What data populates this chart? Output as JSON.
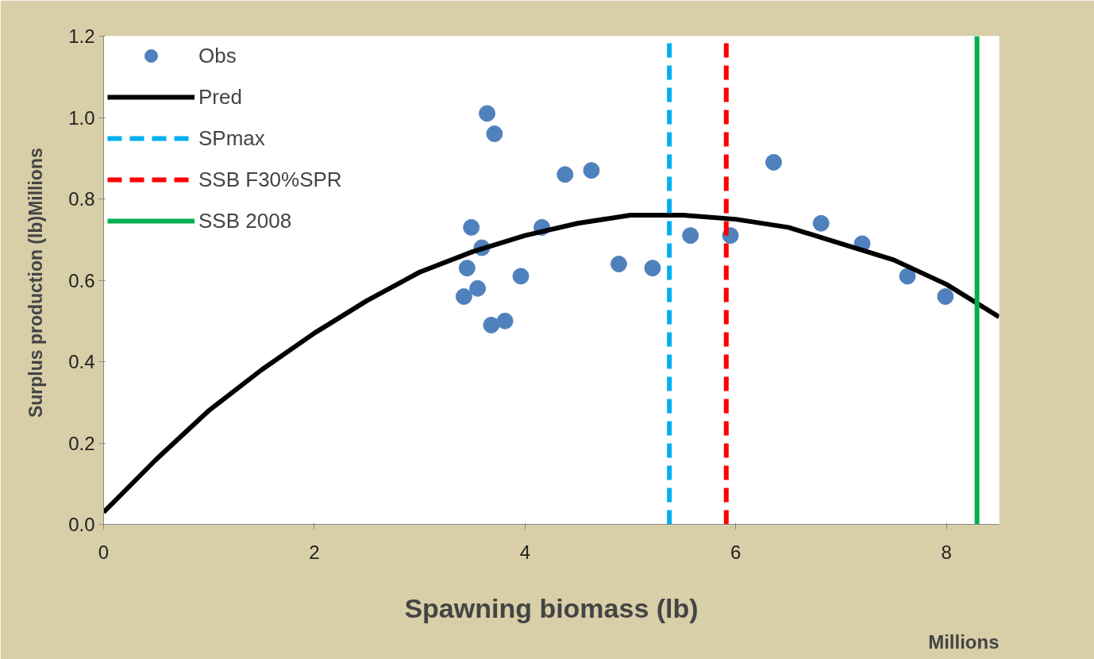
{
  "chart_data": {
    "type": "scatter",
    "xlabel": "Spawning biomass (lb)",
    "ylabel": "Surplus production  (lb)Millions",
    "annotations": [
      "Millions"
    ],
    "xlim": [
      0,
      8.5
    ],
    "xticks": [
      0,
      2,
      4,
      6,
      8
    ],
    "ylim": [
      0,
      1.2
    ],
    "yticks": [
      {
        "value": 0,
        "label": "0.0"
      },
      {
        "value": 0.2,
        "label": "0.2"
      },
      {
        "value": 0.4,
        "label": "0.4"
      },
      {
        "value": 0.6,
        "label": "0.6"
      },
      {
        "value": 0.8,
        "label": "0.8"
      },
      {
        "value": 1.0,
        "label": "1.0"
      },
      {
        "value": 1.2,
        "label": "1.2"
      }
    ],
    "grid": false,
    "legend": "top left",
    "series": [
      {
        "name": "Obs",
        "marker": "circle",
        "color": "#4f81bd",
        "x": [
          3.45,
          3.49,
          3.42,
          3.55,
          3.59,
          3.64,
          3.71,
          3.68,
          3.81,
          3.96,
          4.16,
          4.38,
          4.63,
          4.89,
          5.21,
          5.57,
          5.95,
          6.36,
          6.81,
          7.2,
          7.63,
          7.99
        ],
        "values": [
          0.63,
          0.73,
          0.56,
          0.58,
          0.68,
          1.01,
          0.96,
          0.49,
          0.5,
          0.61,
          0.73,
          0.86,
          0.87,
          0.64,
          0.63,
          0.71,
          0.71,
          0.89,
          0.74,
          0.69,
          0.61,
          0.56
        ]
      },
      {
        "name": "Pred",
        "type": "line",
        "marker": "none",
        "line_style": "solid",
        "color": "#000000",
        "x": [
          0,
          0.5,
          1,
          1.5,
          2,
          2.5,
          3,
          3.5,
          4,
          4.5,
          5,
          5.5,
          6,
          6.5,
          7,
          7.5,
          8,
          8.5
        ],
        "values": [
          0.03,
          0.16,
          0.28,
          0.38,
          0.47,
          0.55,
          0.62,
          0.67,
          0.71,
          0.74,
          0.76,
          0.76,
          0.75,
          0.73,
          0.69,
          0.65,
          0.59,
          0.51
        ]
      },
      {
        "name": "SPmax",
        "type": "line",
        "marker": "none",
        "line_style": "dashed",
        "color": "#00b0f0",
        "x": [
          5.37,
          5.37
        ],
        "values": [
          0,
          1.2
        ]
      },
      {
        "name": "SSB F30%SPR",
        "type": "line",
        "marker": "none",
        "line_style": "dashed",
        "color": "#ff0000",
        "x": [
          5.91,
          5.91
        ],
        "values": [
          0,
          1.2
        ]
      },
      {
        "name": "SSB 2008",
        "type": "line",
        "marker": "none",
        "line_style": "solid",
        "color": "#00b050",
        "x": [
          8.29,
          8.29
        ],
        "values": [
          0,
          1.2
        ]
      }
    ]
  }
}
